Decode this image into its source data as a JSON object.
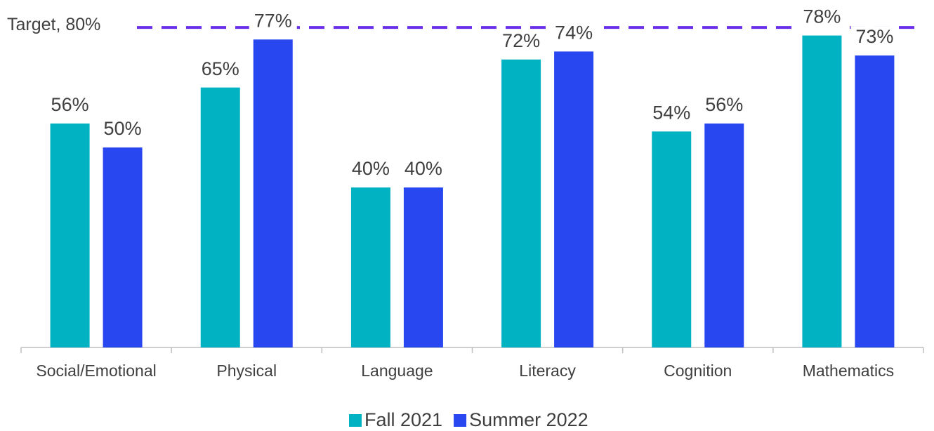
{
  "chart_data": {
    "type": "bar",
    "categories": [
      "Social/Emotional",
      "Physical",
      "Language",
      "Literacy",
      "Cognition",
      "Mathematics"
    ],
    "series": [
      {
        "name": "Fall 2021",
        "color": "#00b2c2",
        "values": [
          56,
          65,
          40,
          72,
          54,
          78
        ],
        "value_labels": [
          "56%",
          "65%",
          "40%",
          "72%",
          "54%",
          "78%"
        ]
      },
      {
        "name": "Summer 2022",
        "color": "#2947f0",
        "values": [
          50,
          77,
          40,
          74,
          56,
          73
        ],
        "value_labels": [
          "50%",
          "77%",
          "40%",
          "74%",
          "56%",
          "73%"
        ]
      }
    ],
    "target": {
      "value": 80,
      "label": "Target, 80%",
      "color": "#6a2ee8"
    },
    "ylim": [
      0,
      86
    ],
    "legend": "bottom"
  }
}
